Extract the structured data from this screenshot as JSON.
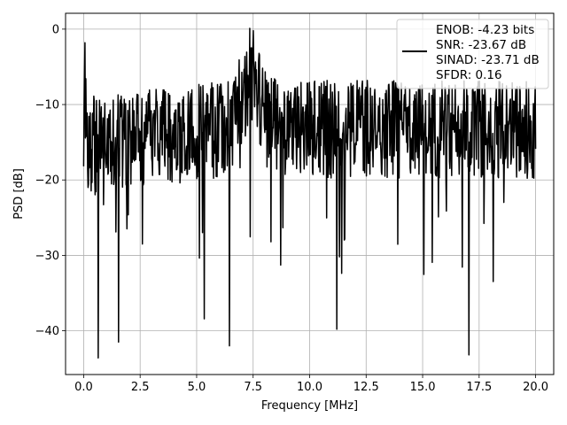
{
  "chart_data": {
    "type": "line",
    "title": "",
    "xlabel": "Frequency [MHz]",
    "ylabel": "PSD [dB]",
    "xlim": [
      -0.8,
      20.8
    ],
    "ylim": [
      -45.8,
      2.1
    ],
    "xticks": [
      0.0,
      2.5,
      5.0,
      7.5,
      10.0,
      12.5,
      15.0,
      17.5,
      20.0
    ],
    "xtick_labels": [
      "0.0",
      "2.5",
      "5.0",
      "7.5",
      "10.0",
      "12.5",
      "15.0",
      "17.5",
      "20.0"
    ],
    "yticks": [
      0,
      -10,
      -20,
      -30,
      -40
    ],
    "ytick_labels": [
      "0",
      "−10",
      "−20",
      "−30",
      "−40"
    ],
    "grid": true,
    "legend_position": "top-right",
    "legend": {
      "lines": [
        "ENOB: -4.23 bits",
        "SNR: -23.67 dB",
        "SINAD: -23.71 dB",
        "SFDR: 0.16"
      ]
    },
    "series": [
      {
        "color": "#000000",
        "x_range": [
          0.0,
          20.0
        ],
        "points": 1024,
        "notable_points": [
          {
            "x": 0.05,
            "y": -1.8
          },
          {
            "x": 0.65,
            "y": -43.6
          },
          {
            "x": 1.55,
            "y": -41.5
          },
          {
            "x": 6.45,
            "y": -42.0
          },
          {
            "x": 7.35,
            "y": 0.1
          },
          {
            "x": 7.5,
            "y": -0.2
          },
          {
            "x": 11.2,
            "y": -39.8
          },
          {
            "x": 17.05,
            "y": -43.2
          }
        ]
      }
    ]
  }
}
